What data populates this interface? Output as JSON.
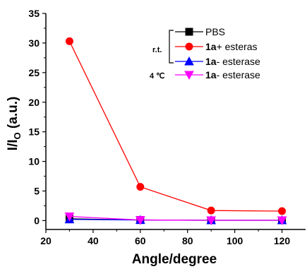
{
  "chart_data": {
    "type": "line",
    "xlabel": "Angle/degree",
    "ylabel_main": "I/I",
    "ylabel_sub": "O",
    "ylabel_units": " (a.u.)",
    "xlim": [
      20,
      130
    ],
    "ylim": [
      -1.5,
      35
    ],
    "xticks": [
      20,
      40,
      60,
      80,
      100,
      120
    ],
    "yticks": [
      0,
      5,
      10,
      15,
      20,
      25,
      30,
      35
    ],
    "x": [
      30,
      60,
      90,
      120
    ],
    "series": [
      {
        "name": "PBS",
        "name_bold": "",
        "color": "#000000",
        "marker": "square",
        "values": [
          0.3,
          0.1,
          0.05,
          0.05
        ]
      },
      {
        "name": "+ esteras",
        "name_bold": "1a",
        "color": "#ff0000",
        "marker": "circle",
        "values": [
          30.3,
          5.7,
          1.7,
          1.6
        ]
      },
      {
        "name": "- esterase",
        "name_bold": "1a",
        "color": "#0000ff",
        "marker": "triangle-up",
        "values": [
          0.2,
          0.1,
          0.05,
          0.05
        ]
      },
      {
        "name": "- esterase",
        "name_bold": "1a",
        "color": "#ff00ff",
        "marker": "triangle-down",
        "values": [
          0.7,
          0.1,
          0.05,
          0.05
        ]
      }
    ],
    "legend_groups": [
      {
        "label": "r.t.",
        "series": [
          0,
          1,
          2
        ]
      },
      {
        "label": "4 ℃",
        "series": [
          3
        ]
      }
    ],
    "legend_position": "top-right",
    "grid": false
  }
}
